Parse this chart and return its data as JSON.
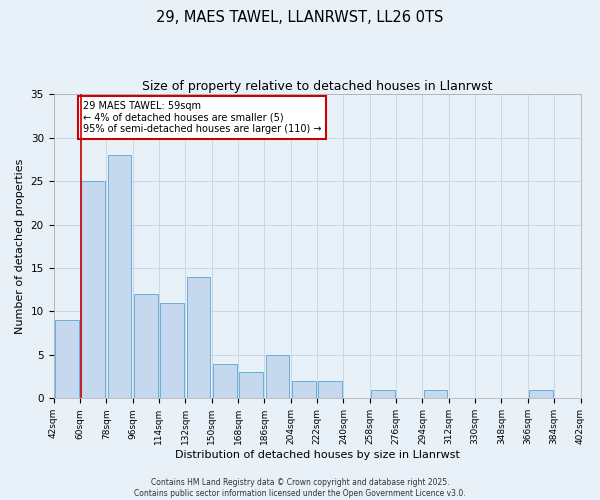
{
  "title": "29, MAES TAWEL, LLANRWST, LL26 0TS",
  "subtitle": "Size of property relative to detached houses in Llanrwst",
  "xlabel": "Distribution of detached houses by size in Llanrwst",
  "ylabel": "Number of detached properties",
  "bar_values": [
    9,
    25,
    28,
    12,
    11,
    14,
    4,
    3,
    5,
    2,
    2,
    0,
    1,
    0,
    1,
    0,
    0,
    0,
    1,
    0
  ],
  "bin_labels": [
    "42sqm",
    "60sqm",
    "78sqm",
    "96sqm",
    "114sqm",
    "132sqm",
    "150sqm",
    "168sqm",
    "186sqm",
    "204sqm",
    "222sqm",
    "240sqm",
    "258sqm",
    "276sqm",
    "294sqm",
    "312sqm",
    "330sqm",
    "348sqm",
    "366sqm",
    "384sqm",
    "402sqm"
  ],
  "bar_color": "#c5d8ee",
  "bar_edge_color": "#6aaed6",
  "grid_color": "#c8d8e8",
  "bg_color": "#e8f0f8",
  "annotation_text": "29 MAES TAWEL: 59sqm\n← 4% of detached houses are smaller (5)\n95% of semi-detached houses are larger (110) →",
  "annotation_box_color": "#ffffff",
  "annotation_border_color": "#cc0000",
  "footer_text": "Contains HM Land Registry data © Crown copyright and database right 2025.\nContains public sector information licensed under the Open Government Licence v3.0.",
  "ylim": [
    0,
    35
  ],
  "yticks": [
    0,
    5,
    10,
    15,
    20,
    25,
    30,
    35
  ]
}
